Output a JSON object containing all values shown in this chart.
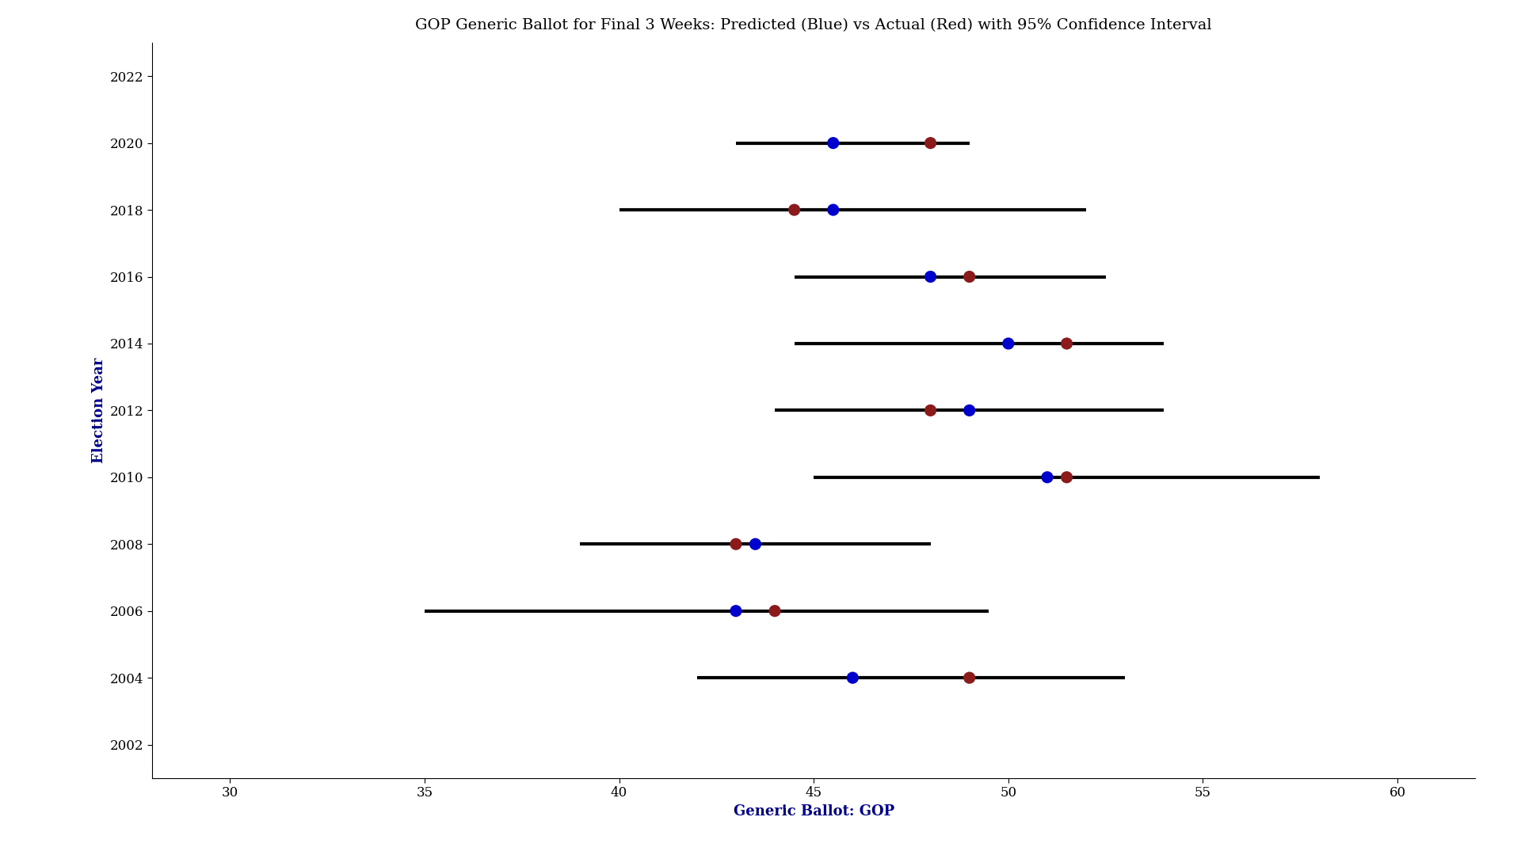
{
  "title": "GOP Generic Ballot for Final 3 Weeks: Predicted (Blue) vs Actual (Red) with 95% Confidence Interval",
  "xlabel": "Generic Ballot: GOP",
  "ylabel": "Election Year",
  "years": [
    2022,
    2020,
    2018,
    2016,
    2014,
    2012,
    2010,
    2008,
    2006,
    2004,
    2002
  ],
  "data": {
    "2020": {
      "ci_low": 43.0,
      "ci_high": 49.0,
      "predicted": 45.5,
      "actual": 48.0
    },
    "2018": {
      "ci_low": 40.0,
      "ci_high": 52.0,
      "predicted": 45.5,
      "actual": 44.5
    },
    "2016": {
      "ci_low": 44.5,
      "ci_high": 52.5,
      "predicted": 48.0,
      "actual": 49.0
    },
    "2014": {
      "ci_low": 44.5,
      "ci_high": 54.0,
      "predicted": 50.0,
      "actual": 51.5
    },
    "2012": {
      "ci_low": 44.0,
      "ci_high": 54.0,
      "predicted": 49.0,
      "actual": 48.0
    },
    "2010": {
      "ci_low": 45.0,
      "ci_high": 58.0,
      "predicted": 51.0,
      "actual": 51.5
    },
    "2008": {
      "ci_low": 39.0,
      "ci_high": 48.0,
      "predicted": 43.5,
      "actual": 43.0
    },
    "2006": {
      "ci_low": 35.0,
      "ci_high": 49.5,
      "predicted": 43.0,
      "actual": 44.0
    },
    "2004": {
      "ci_low": 42.0,
      "ci_high": 53.0,
      "predicted": 46.0,
      "actual": 49.0
    }
  },
  "xlim": [
    28,
    62
  ],
  "ylim": [
    2001,
    2023
  ],
  "xticks": [
    30,
    35,
    40,
    45,
    50,
    55,
    60
  ],
  "predicted_color": "#0000CD",
  "actual_color": "#8B1A1A",
  "ci_color": "#000000",
  "marker_size": 120,
  "line_width": 3.0,
  "title_fontsize": 14,
  "label_fontsize": 13,
  "tick_fontsize": 12,
  "axis_label_color": "#00008B",
  "tick_label_color": "#000000",
  "bg_color": "#FFFFFF"
}
